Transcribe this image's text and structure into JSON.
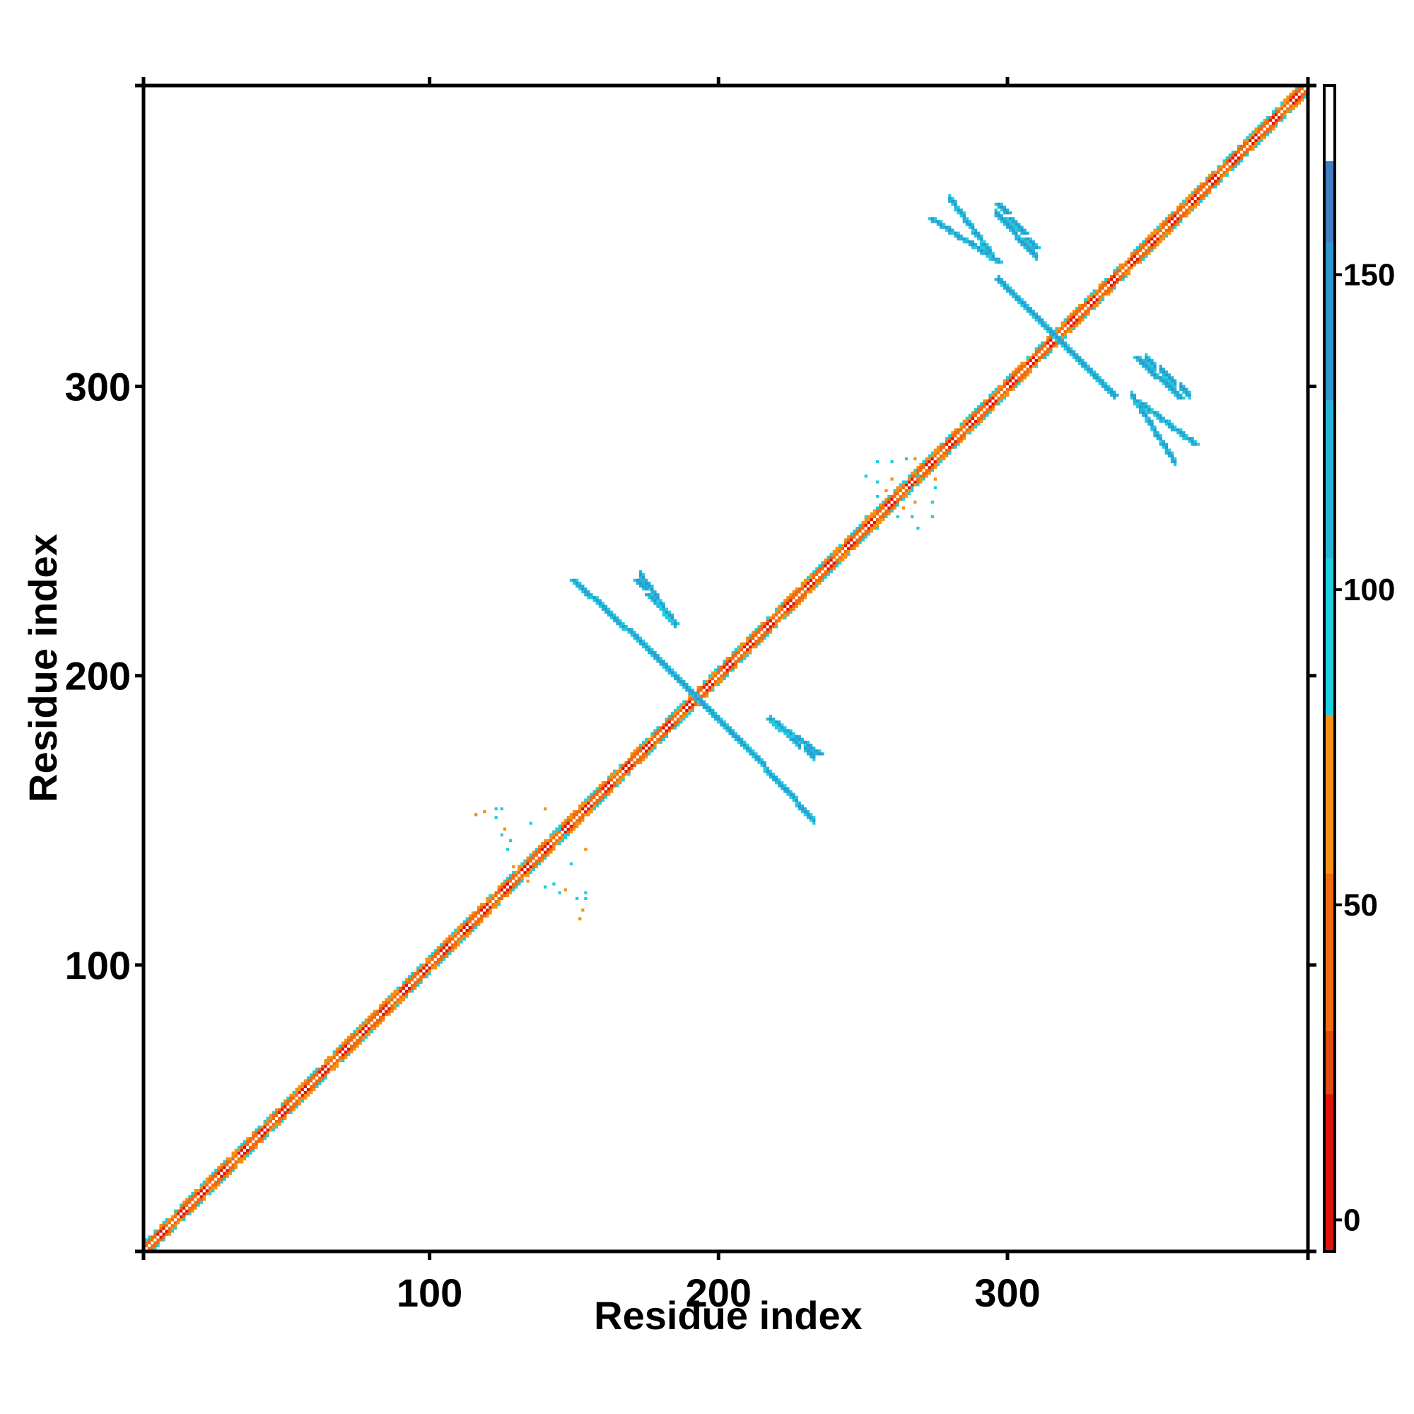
{
  "chart_data": {
    "type": "heatmap",
    "title": "",
    "xlabel": "Residue index",
    "ylabel": "Residue index",
    "xlim": [
      1,
      404
    ],
    "ylim": [
      1,
      404
    ],
    "xticks": [
      100,
      200,
      300
    ],
    "yticks": [
      100,
      200,
      300
    ],
    "grid": false,
    "colorbar": {
      "position": "right",
      "range": [
        -5,
        180
      ],
      "ticks": [
        0,
        50,
        100,
        150
      ],
      "bands": [
        {
          "from": -5,
          "to": 20,
          "color": "#e0140a"
        },
        {
          "from": 20,
          "to": 30,
          "color": "#e04a10"
        },
        {
          "from": 30,
          "to": 55,
          "color": "#f06a10"
        },
        {
          "from": 55,
          "to": 80,
          "color": "#f49214"
        },
        {
          "from": 80,
          "to": 105,
          "color": "#1ecfe0"
        },
        {
          "from": 105,
          "to": 130,
          "color": "#25b4d8"
        },
        {
          "from": 130,
          "to": 155,
          "color": "#2e96cf"
        },
        {
          "from": 155,
          "to": 168,
          "color": "#3f7fc4"
        },
        {
          "from": 168,
          "to": 180,
          "color": "#ffffff"
        }
      ]
    },
    "regions": [
      {
        "kind": "diagonal",
        "from": 1,
        "to": 404
      },
      {
        "kind": "antiparallel-sheet",
        "i": [
          150,
          175
        ],
        "j": [
          233,
          210
        ],
        "value": 130
      },
      {
        "kind": "antiparallel-sheet",
        "i": [
          175,
          210
        ],
        "j": [
          210,
          175
        ],
        "value": 130
      },
      {
        "kind": "antiparallel-sheet",
        "i": [
          172,
          185
        ],
        "j": [
          233,
          218
        ],
        "value": 140
      },
      {
        "kind": "antiparallel-sheet",
        "i": [
          218,
          235
        ],
        "j": [
          185,
          173
        ],
        "value": 140
      },
      {
        "kind": "antiparallel-sheet",
        "i": [
          274,
          297
        ],
        "j": [
          358,
          343
        ],
        "value": 130
      },
      {
        "kind": "antiparallel-sheet",
        "i": [
          297,
          310
        ],
        "j": [
          363,
          348
        ],
        "value": 140
      },
      {
        "kind": "antiparallel-sheet",
        "i": [
          297,
          337
        ],
        "j": [
          337,
          297
        ],
        "value": 130
      },
      {
        "kind": "antiparallel-sheet",
        "i": [
          345,
          360
        ],
        "j": [
          310,
          296
        ],
        "value": 140
      },
      {
        "kind": "antiparallel-sheet",
        "i": [
          345,
          365
        ],
        "j": [
          295,
          280
        ],
        "value": 130
      },
      {
        "kind": "scatter-contacts",
        "i": [
          120,
          160
        ],
        "j": [
          115,
          160
        ],
        "value": 95
      },
      {
        "kind": "scatter-contacts",
        "i": [
          255,
          275
        ],
        "j": [
          250,
          275
        ],
        "value": 95
      }
    ]
  }
}
